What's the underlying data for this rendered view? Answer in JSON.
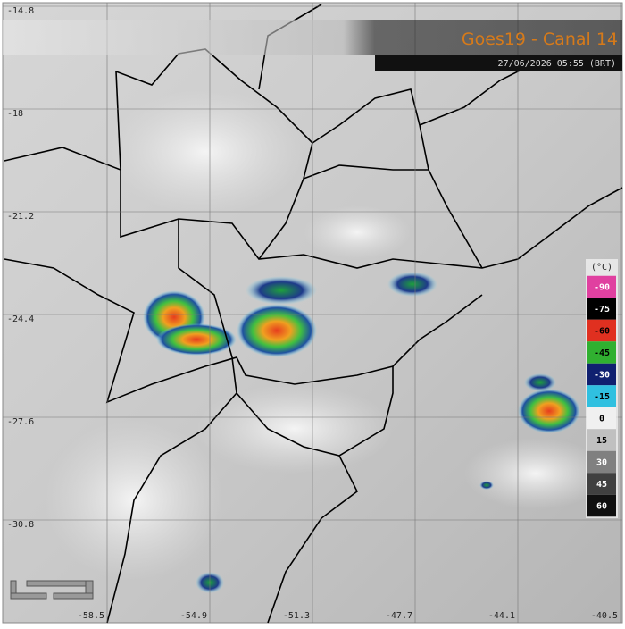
{
  "header": {
    "title": "Goes19 - Canal 14",
    "timestamp": "27/06/2026 05:55 (BRT)"
  },
  "map": {
    "lat_ticks": [
      -14.8,
      -18.0,
      -21.2,
      -24.4,
      -27.6,
      -30.8
    ],
    "lon_ticks": [
      -58.5,
      -54.9,
      -51.3,
      -47.7,
      -44.1,
      -40.5
    ]
  },
  "colorbar": {
    "unit": "(°C)",
    "ticks": [
      -90,
      -75,
      -60,
      -45,
      -30,
      -15,
      0,
      15,
      30,
      45,
      60
    ]
  }
}
